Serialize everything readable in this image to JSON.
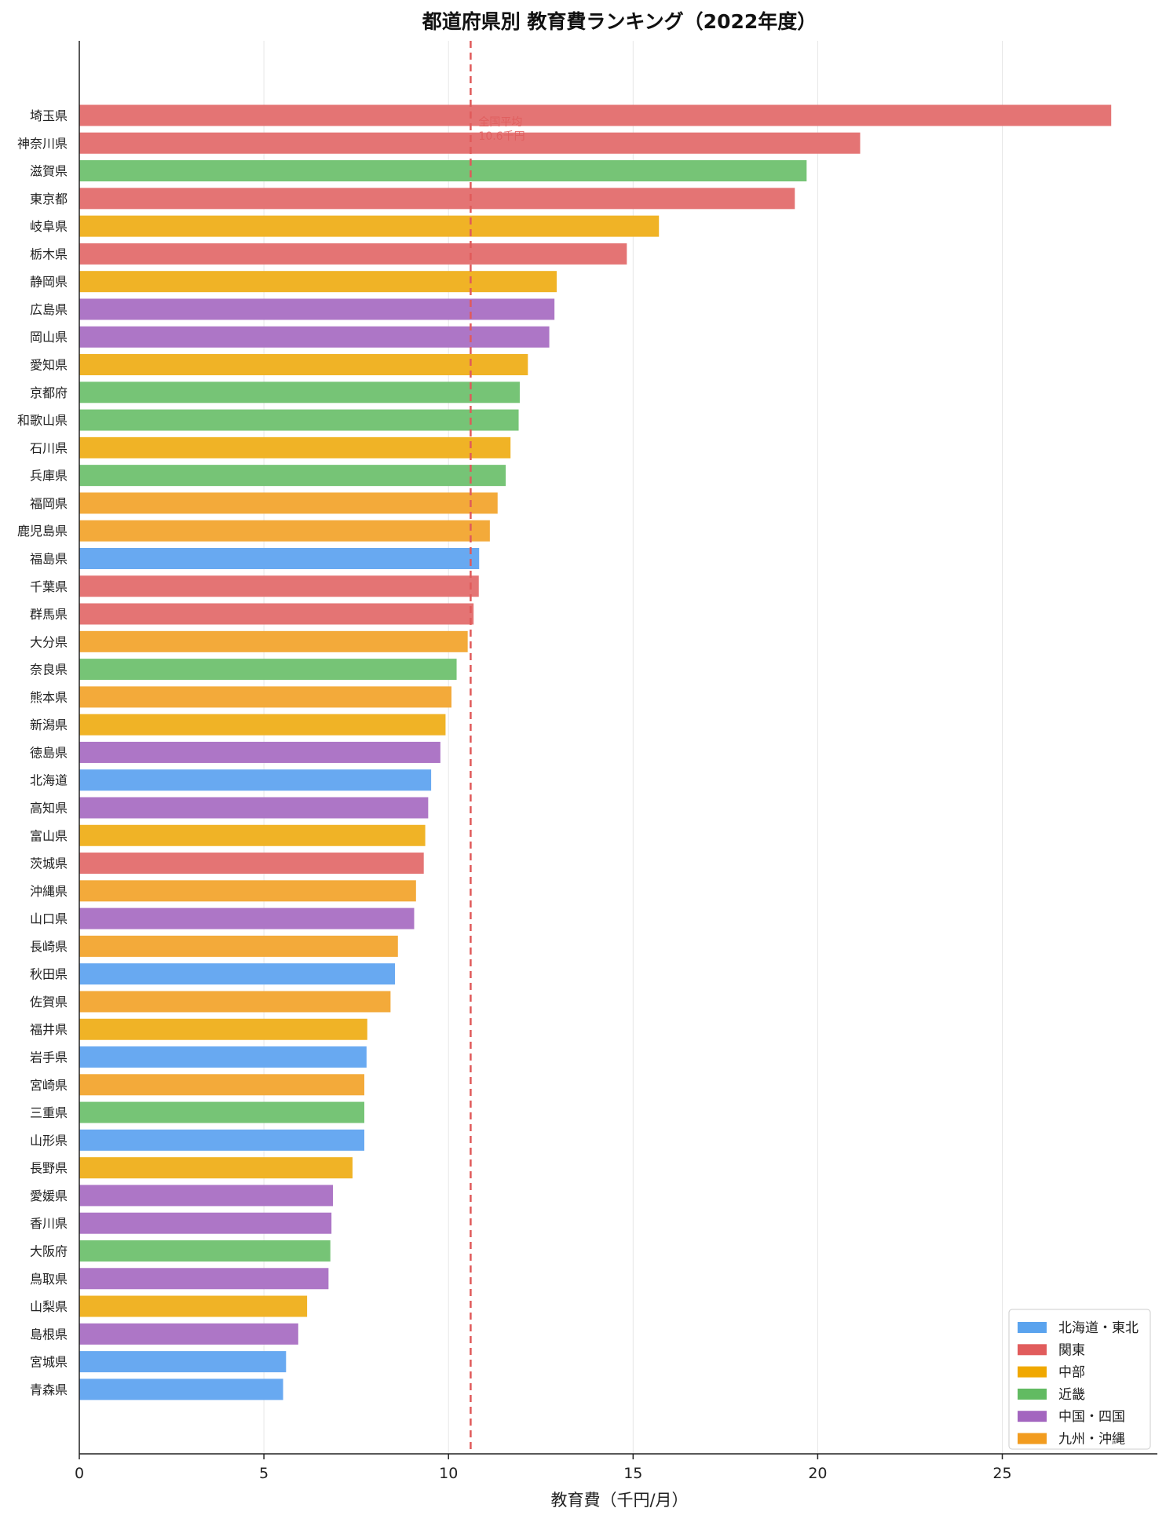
{
  "chart_data": {
    "type": "bar",
    "orientation": "horizontal",
    "title": "都道府県別 教育費ランキング（2022年度）",
    "xlabel": "教育費（千円/月）",
    "ylabel": "",
    "xlim": [
      0,
      29.2
    ],
    "xticks": [
      0,
      5,
      10,
      15,
      20,
      25
    ],
    "grid": "vertical",
    "legend_position": "bottom-right",
    "average": {
      "value": 10.6,
      "label_line1": "全国平均",
      "label_line2": "10.6千円",
      "color": "#e05a5a",
      "style": "dashed"
    },
    "regions": [
      {
        "name": "北海道・東北",
        "color": "#5aa3ee"
      },
      {
        "name": "関東",
        "color": "#e15c5c"
      },
      {
        "name": "中部",
        "color": "#f0a800"
      },
      {
        "name": "近畿",
        "color": "#62bb62"
      },
      {
        "name": "中国・四国",
        "color": "#a365bf"
      },
      {
        "name": "九州・沖縄",
        "color": "#f29c1f"
      }
    ],
    "bar_colors": {
      "北海道・東北": "#68a9f1",
      "関東": "#e47474",
      "中部": "#f0b326",
      "近畿": "#76c476",
      "中国・四国": "#ad76c6",
      "九州・沖縄": "#f3aa3a"
    },
    "categories": [
      "埼玉県",
      "神奈川県",
      "滋賀県",
      "東京都",
      "岐阜県",
      "栃木県",
      "静岡県",
      "広島県",
      "岡山県",
      "愛知県",
      "京都府",
      "和歌山県",
      "石川県",
      "兵庫県",
      "福岡県",
      "鹿児島県",
      "福島県",
      "千葉県",
      "群馬県",
      "大分県",
      "奈良県",
      "熊本県",
      "新潟県",
      "徳島県",
      "北海道",
      "高知県",
      "富山県",
      "茨城県",
      "沖縄県",
      "山口県",
      "長崎県",
      "秋田県",
      "佐賀県",
      "福井県",
      "岩手県",
      "宮崎県",
      "三重県",
      "山形県",
      "長野県",
      "愛媛県",
      "香川県",
      "大阪府",
      "鳥取県",
      "山梨県",
      "島根県",
      "宮城県",
      "青森県"
    ],
    "values": [
      27.95,
      21.15,
      19.7,
      19.38,
      15.7,
      14.83,
      12.93,
      12.87,
      12.73,
      12.15,
      11.93,
      11.9,
      11.68,
      11.55,
      11.33,
      11.12,
      10.83,
      10.82,
      10.68,
      10.52,
      10.22,
      10.08,
      9.92,
      9.78,
      9.53,
      9.45,
      9.37,
      9.33,
      9.12,
      9.07,
      8.63,
      8.55,
      8.43,
      7.8,
      7.78,
      7.72,
      7.72,
      7.72,
      7.4,
      6.87,
      6.83,
      6.8,
      6.75,
      6.17,
      5.93,
      5.6,
      5.52
    ],
    "value_regions": [
      "関東",
      "関東",
      "近畿",
      "関東",
      "中部",
      "関東",
      "中部",
      "中国・四国",
      "中国・四国",
      "中部",
      "近畿",
      "近畿",
      "中部",
      "近畿",
      "九州・沖縄",
      "九州・沖縄",
      "北海道・東北",
      "関東",
      "関東",
      "九州・沖縄",
      "近畿",
      "九州・沖縄",
      "中部",
      "中国・四国",
      "北海道・東北",
      "中国・四国",
      "中部",
      "関東",
      "九州・沖縄",
      "中国・四国",
      "九州・沖縄",
      "北海道・東北",
      "九州・沖縄",
      "中部",
      "北海道・東北",
      "九州・沖縄",
      "近畿",
      "北海道・東北",
      "中部",
      "中国・四国",
      "中国・四国",
      "近畿",
      "中国・四国",
      "中部",
      "中国・四国",
      "北海道・東北",
      "北海道・東北"
    ]
  }
}
